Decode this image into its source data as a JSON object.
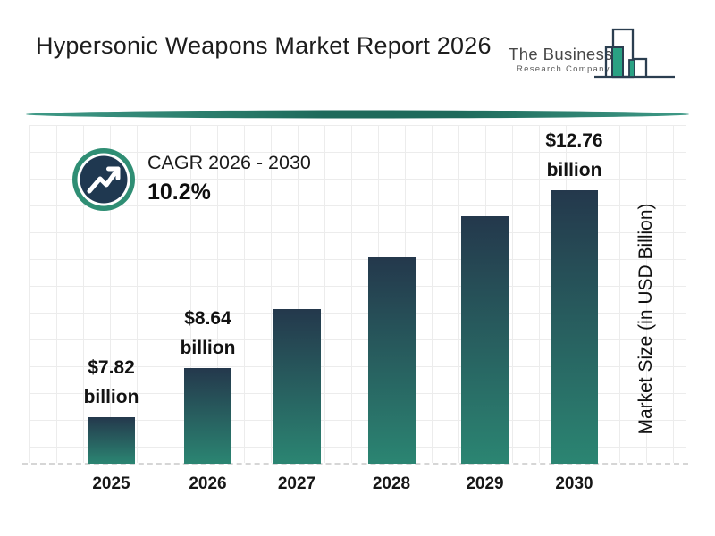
{
  "title": "Hypersonic Weapons Market Report 2026",
  "logo": {
    "line1": "The Business",
    "line2": "Research Company"
  },
  "cagr": {
    "label": "CAGR 2026 - 2030",
    "value": "10.2%"
  },
  "y_axis_label": "Market Size (in USD Billion)",
  "colors": {
    "bar_gradient_top": "#24384c",
    "bar_gradient_bottom": "#2b8572",
    "badge_ring_green": "#2f8e74",
    "badge_inner_navy": "#1f3850",
    "divider_teal_dark": "#1e6a5b",
    "divider_teal_light": "#3f9a87",
    "logo_outline": "#2b3e50",
    "logo_green": "#2aa183",
    "grid_line": "#ececec",
    "baseline_dash": "#d6d6d6"
  },
  "chart_data": {
    "type": "bar",
    "categories": [
      "2025",
      "2026",
      "2027",
      "2028",
      "2029",
      "2030"
    ],
    "values": [
      7.82,
      8.64,
      9.52,
      10.49,
      11.56,
      12.76
    ],
    "value_labels": [
      [
        "$7.82",
        "billion"
      ],
      [
        "$8.64",
        "billion"
      ],
      null,
      null,
      null,
      [
        "$12.76",
        "billion"
      ]
    ],
    "title": "Hypersonic Weapons Market Report 2026",
    "xlabel": "",
    "ylabel": "Market Size (in USD Billion)",
    "ylim": [
      0,
      14
    ],
    "grid": true,
    "legend": "none",
    "annotation": "CAGR 2026 - 2030: 10.2%"
  }
}
